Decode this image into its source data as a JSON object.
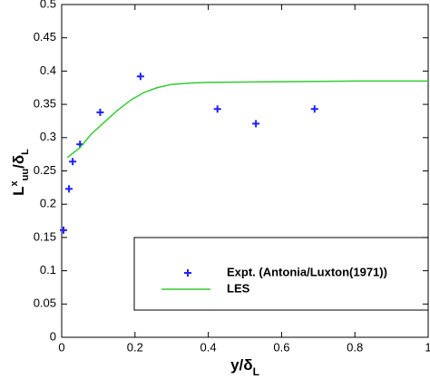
{
  "chart_data": {
    "type": "line",
    "y_label": {
      "text": "L",
      "sup": "x",
      "sub": "uu",
      "rest": "/δ",
      "sub2": "L"
    },
    "x_label": {
      "text": "y/δ",
      "sub": "L"
    },
    "xlim": [
      0,
      1
    ],
    "xticks": [
      0,
      0.2,
      0.4,
      0.6,
      0.8,
      1
    ],
    "ylim": [
      0,
      0.5
    ],
    "yticks": [
      0,
      0.05,
      0.1,
      0.15,
      0.2,
      0.25,
      0.3,
      0.35,
      0.4,
      0.45,
      0.5
    ],
    "grid": false,
    "legend": "lower right",
    "series": [
      {
        "name": "Expt. (Antonia/Luxton(1971))",
        "type": "scatter",
        "marker": "plus",
        "color": "#1f1fff",
        "x": [
          0.005,
          0.02,
          0.03,
          0.05,
          0.105,
          0.215,
          0.425,
          0.53,
          0.69
        ],
        "values": [
          0.161,
          0.223,
          0.264,
          0.29,
          0.338,
          0.392,
          0.343,
          0.321,
          0.343
        ]
      },
      {
        "name": "LES",
        "type": "line",
        "color": "#33cc33",
        "x": [
          0.015,
          0.05,
          0.08,
          0.12,
          0.15,
          0.19,
          0.225,
          0.26,
          0.3,
          0.35,
          0.4,
          0.6,
          0.8,
          1
        ],
        "values": [
          0.27,
          0.285,
          0.305,
          0.325,
          0.34,
          0.357,
          0.368,
          0.375,
          0.38,
          0.382,
          0.383,
          0.384,
          0.385,
          0.385
        ]
      }
    ]
  }
}
